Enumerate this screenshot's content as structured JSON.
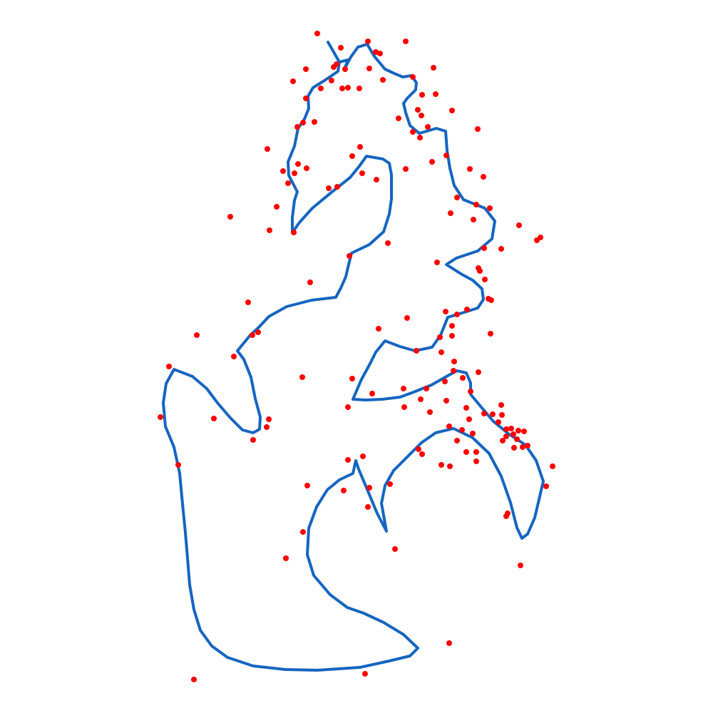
{
  "colors": {
    "background": "#ffffff",
    "curve": "#1565c0",
    "points": "#ff0000"
  },
  "chart_data": {
    "type": "scatter",
    "series": [
      {
        "kind": "closed-curve",
        "color": "#1565c0",
        "values": [
          [
            460,
            59
          ],
          [
            476,
            87
          ],
          [
            488,
            84
          ],
          [
            483,
            97
          ],
          [
            492,
            80
          ],
          [
            502,
            66
          ],
          [
            515,
            62
          ],
          [
            525,
            79
          ],
          [
            540,
            97
          ],
          [
            553,
            103
          ],
          [
            565,
            108
          ],
          [
            577,
            106
          ],
          [
            584,
            116
          ],
          [
            583,
            126
          ],
          [
            571,
            138
          ],
          [
            566,
            145
          ],
          [
            569,
            158
          ],
          [
            575,
            176
          ],
          [
            588,
            187
          ],
          [
            612,
            180
          ],
          [
            625,
            184
          ],
          [
            627,
            211
          ],
          [
            631,
            236
          ],
          [
            637,
            260
          ],
          [
            650,
            280
          ],
          [
            680,
            292
          ],
          [
            694,
            310
          ],
          [
            690,
            335
          ],
          [
            670,
            352
          ],
          [
            640,
            362
          ],
          [
            626,
            371
          ],
          [
            648,
            385
          ],
          [
            663,
            393
          ],
          [
            676,
            405
          ],
          [
            678,
            420
          ],
          [
            670,
            432
          ],
          [
            648,
            439
          ],
          [
            628,
            445
          ],
          [
            624,
            455
          ],
          [
            618,
            470
          ],
          [
            606,
            487
          ],
          [
            582,
            492
          ],
          [
            561,
            486
          ],
          [
            540,
            478
          ],
          [
            527,
            494
          ],
          [
            518,
            512
          ],
          [
            507,
            532
          ],
          [
            495,
            560
          ],
          [
            513,
            561
          ],
          [
            536,
            560
          ],
          [
            561,
            557
          ],
          [
            580,
            550
          ],
          [
            605,
            540
          ],
          [
            628,
            527
          ],
          [
            641,
            520
          ],
          [
            654,
            523
          ],
          [
            660,
            537
          ],
          [
            660,
            553
          ],
          [
            675,
            571
          ],
          [
            692,
            591
          ],
          [
            714,
            609
          ],
          [
            737,
            624
          ],
          [
            752,
            646
          ],
          [
            762,
            675
          ],
          [
            750,
            726
          ],
          [
            740,
            749
          ],
          [
            732,
            755
          ],
          [
            725,
            740
          ],
          [
            716,
            705
          ],
          [
            703,
            668
          ],
          [
            686,
            636
          ],
          [
            663,
            614
          ],
          [
            636,
            601
          ],
          [
            611,
            607
          ],
          [
            591,
            621
          ],
          [
            570,
            642
          ],
          [
            552,
            660
          ],
          [
            540,
            681
          ],
          [
            535,
            706
          ],
          [
            542,
            745
          ],
          [
            529,
            720
          ],
          [
            514,
            684
          ],
          [
            503,
            658
          ],
          [
            499,
            646
          ],
          [
            495,
            664
          ],
          [
            476,
            673
          ],
          [
            459,
            687
          ],
          [
            444,
            711
          ],
          [
            433,
            741
          ],
          [
            431,
            778
          ],
          [
            440,
            807
          ],
          [
            463,
            834
          ],
          [
            487,
            852
          ],
          [
            510,
            860
          ],
          [
            538,
            873
          ],
          [
            566,
            890
          ],
          [
            586,
            909
          ],
          [
            575,
            920
          ],
          [
            546,
            927
          ],
          [
            505,
            936
          ],
          [
            445,
            940
          ],
          [
            400,
            939
          ],
          [
            355,
            934
          ],
          [
            319,
            922
          ],
          [
            297,
            906
          ],
          [
            281,
            884
          ],
          [
            272,
            855
          ],
          [
            266,
            820
          ],
          [
            263,
            783
          ],
          [
            260,
            747
          ],
          [
            256,
            707
          ],
          [
            252,
            664
          ],
          [
            244,
            627
          ],
          [
            232,
            598
          ],
          [
            229,
            565
          ],
          [
            233,
            538
          ],
          [
            244,
            518
          ],
          [
            270,
            528
          ],
          [
            290,
            545
          ],
          [
            305,
            565
          ],
          [
            323,
            586
          ],
          [
            340,
            603
          ],
          [
            355,
            607
          ],
          [
            364,
            602
          ],
          [
            365,
            585
          ],
          [
            358,
            559
          ],
          [
            352,
            529
          ],
          [
            342,
            504
          ],
          [
            333,
            492
          ],
          [
            351,
            470
          ],
          [
            363,
            459
          ],
          [
            377,
            444
          ],
          [
            402,
            430
          ],
          [
            437,
            421
          ],
          [
            471,
            417
          ],
          [
            478,
            404
          ],
          [
            485,
            388
          ],
          [
            489,
            371
          ],
          [
            493,
            355
          ],
          [
            518,
            343
          ],
          [
            538,
            325
          ],
          [
            546,
            300
          ],
          [
            549,
            279
          ],
          [
            549,
            245
          ],
          [
            546,
            229
          ],
          [
            537,
            223
          ],
          [
            514,
            219
          ],
          [
            504,
            233
          ],
          [
            491,
            249
          ],
          [
            467,
            268
          ],
          [
            438,
            292
          ],
          [
            420,
            312
          ],
          [
            410,
            326
          ],
          [
            410,
            305
          ],
          [
            413,
            281
          ],
          [
            417,
            269
          ],
          [
            405,
            246
          ],
          [
            404,
            227
          ],
          [
            413,
            205
          ],
          [
            418,
            180
          ],
          [
            427,
            167
          ],
          [
            433,
            152
          ],
          [
            432,
            135
          ],
          [
            439,
            123
          ],
          [
            455,
            113
          ],
          [
            474,
            100
          ],
          [
            476,
            87
          ]
        ]
      },
      {
        "kind": "points",
        "color": "#ff0000",
        "values": [
          [
            445,
            47
          ],
          [
            569,
            58
          ],
          [
            516,
            58
          ],
          [
            478,
            67
          ],
          [
            527,
            73
          ],
          [
            533,
            75
          ],
          [
            472,
            90
          ],
          [
            468,
            94
          ],
          [
            608,
            95
          ],
          [
            429,
            97
          ],
          [
            484,
            97
          ],
          [
            518,
            96
          ],
          [
            579,
            108
          ],
          [
            411,
            114
          ],
          [
            537,
            112
          ],
          [
            465,
            113
          ],
          [
            488,
            123
          ],
          [
            450,
            124
          ],
          [
            504,
            124
          ],
          [
            480,
            124
          ],
          [
            592,
            133
          ],
          [
            611,
            132
          ],
          [
            429,
            138
          ],
          [
            586,
            154
          ],
          [
            634,
            155
          ],
          [
            559,
            166
          ],
          [
            591,
            162
          ],
          [
            425,
            172
          ],
          [
            441,
            171
          ],
          [
            417,
            178
          ],
          [
            579,
            185
          ],
          [
            600,
            178
          ],
          [
            670,
            181
          ],
          [
            589,
            193
          ],
          [
            375,
            209
          ],
          [
            494,
            219
          ],
          [
            505,
            206
          ],
          [
            626,
            218
          ],
          [
            606,
            227
          ],
          [
            569,
            237
          ],
          [
            418,
            230
          ],
          [
            430,
            236
          ],
          [
            397,
            240
          ],
          [
            413,
            243
          ],
          [
            659,
            237
          ],
          [
            508,
            243
          ],
          [
            678,
            248
          ],
          [
            404,
            257
          ],
          [
            528,
            252
          ],
          [
            473,
            262
          ],
          [
            641,
            277
          ],
          [
            461,
            264
          ],
          [
            388,
            290
          ],
          [
            668,
            287
          ],
          [
            632,
            299
          ],
          [
            687,
            292
          ],
          [
            323,
            304
          ],
          [
            664,
            308
          ],
          [
            728,
            316
          ],
          [
            378,
            323
          ],
          [
            412,
            326
          ],
          [
            758,
            333
          ],
          [
            753,
            337
          ],
          [
            544,
            341
          ],
          [
            679,
            348
          ],
          [
            703,
            349
          ],
          [
            490,
            359
          ],
          [
            613,
            368
          ],
          [
            671,
            376
          ],
          [
            673,
            380
          ],
          [
            680,
            392
          ],
          [
            435,
            396
          ],
          [
            685,
            419
          ],
          [
            689,
            421
          ],
          [
            655,
            434
          ],
          [
            348,
            424
          ],
          [
            571,
            446
          ],
          [
            625,
            437
          ],
          [
            641,
            441
          ],
          [
            531,
            461
          ],
          [
            634,
            457
          ],
          [
            688,
            468
          ],
          [
            276,
            470
          ],
          [
            362,
            466
          ],
          [
            354,
            470
          ],
          [
            617,
            473
          ],
          [
            634,
            471
          ],
          [
            328,
            500
          ],
          [
            584,
            492
          ],
          [
            619,
            494
          ],
          [
            637,
            507
          ],
          [
            237,
            514
          ],
          [
            424,
            529
          ],
          [
            494,
            531
          ],
          [
            671,
            522
          ],
          [
            636,
            520
          ],
          [
            649,
            530
          ],
          [
            624,
            535
          ],
          [
            566,
            545
          ],
          [
            598,
            545
          ],
          [
            660,
            549
          ],
          [
            522,
            552
          ],
          [
            590,
            560
          ],
          [
            626,
            562
          ],
          [
            654,
            572
          ],
          [
            488,
            571
          ],
          [
            567,
            571
          ],
          [
            703,
            568
          ],
          [
            225,
            585
          ],
          [
            300,
            587
          ],
          [
            377,
            588
          ],
          [
            374,
            599
          ],
          [
            603,
            578
          ],
          [
            658,
            588
          ],
          [
            679,
            580
          ],
          [
            691,
            581
          ],
          [
            704,
            582
          ],
          [
            699,
            592
          ],
          [
            710,
            602
          ],
          [
            717,
            601
          ],
          [
            727,
            604
          ],
          [
            720,
            609
          ],
          [
            735,
            605
          ],
          [
            630,
            598
          ],
          [
            648,
            603
          ],
          [
            663,
            608
          ],
          [
            710,
            612
          ],
          [
            725,
            616
          ],
          [
            705,
            618
          ],
          [
            733,
            627
          ],
          [
            740,
            625
          ],
          [
            355,
            617
          ],
          [
            587,
            630
          ],
          [
            654,
            634
          ],
          [
            668,
            634
          ],
          [
            721,
            628
          ],
          [
            641,
            618
          ],
          [
            619,
            652
          ],
          [
            631,
            654
          ],
          [
            592,
            637
          ],
          [
            668,
            647
          ],
          [
            775,
            654
          ],
          [
            509,
            640
          ],
          [
            488,
            645
          ],
          [
            250,
            652
          ],
          [
            766,
            682
          ],
          [
            431,
            681
          ],
          [
            482,
            688
          ],
          [
            518,
            684
          ],
          [
            547,
            679
          ],
          [
            516,
            711
          ],
          [
            710,
            724
          ],
          [
            712,
            720
          ],
          [
            425,
            746
          ],
          [
            554,
            770
          ],
          [
            401,
            783
          ],
          [
            730,
            793
          ],
          [
            630,
            902
          ],
          [
            272,
            953
          ],
          [
            512,
            945
          ]
        ]
      }
    ]
  }
}
